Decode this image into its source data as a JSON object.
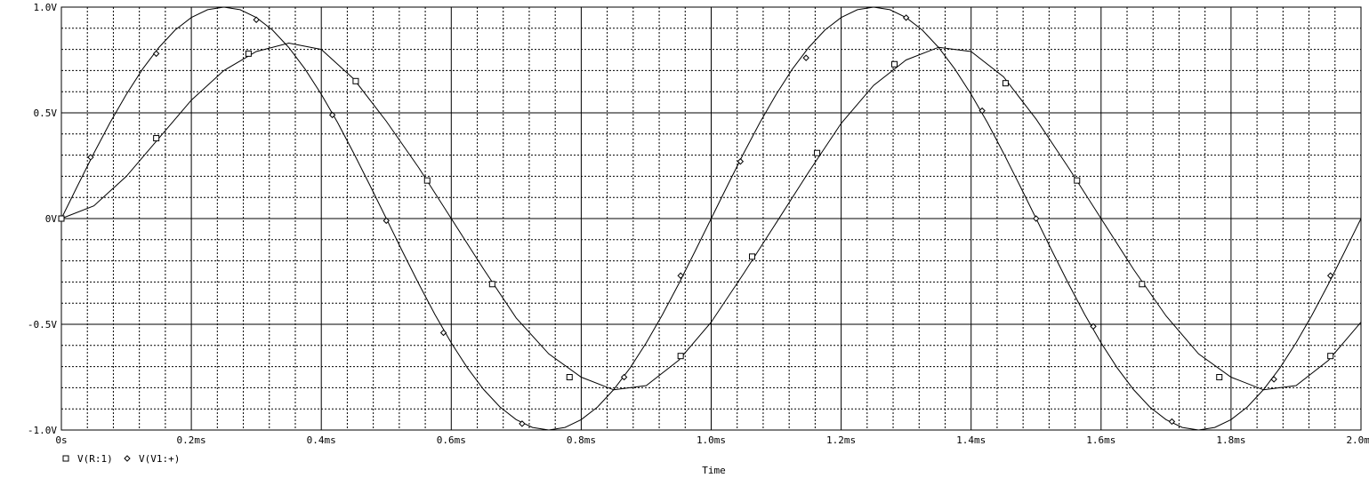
{
  "chart_data": {
    "type": "line",
    "xlabel": "Time",
    "ylabel": "",
    "xlim": [
      0,
      2.0
    ],
    "ylim": [
      -1.0,
      1.0
    ],
    "x_unit": "ms",
    "grid": true,
    "legend_placement": "bottom-left",
    "x_ticks": [
      {
        "value": 0.0,
        "label": "0s"
      },
      {
        "value": 0.2,
        "label": "0.2ms"
      },
      {
        "value": 0.4,
        "label": "0.4ms"
      },
      {
        "value": 0.6,
        "label": "0.6ms"
      },
      {
        "value": 0.8,
        "label": "0.8ms"
      },
      {
        "value": 1.0,
        "label": "1.0ms"
      },
      {
        "value": 1.2,
        "label": "1.2ms"
      },
      {
        "value": 1.4,
        "label": "1.4ms"
      },
      {
        "value": 1.6,
        "label": "1.6ms"
      },
      {
        "value": 1.8,
        "label": "1.8ms"
      },
      {
        "value": 2.0,
        "label": "2.0ms"
      }
    ],
    "y_ticks": [
      {
        "value": 1.0,
        "label": "1.0V"
      },
      {
        "value": 0.5,
        "label": "0.5V"
      },
      {
        "value": 0.0,
        "label": "0V"
      },
      {
        "value": -0.5,
        "label": "-0.5V"
      },
      {
        "value": -1.0,
        "label": "-1.0V"
      }
    ],
    "series": [
      {
        "name": "V(R:1)",
        "marker": "square",
        "color": "#000000",
        "x": [
          0.0,
          0.05,
          0.1,
          0.15,
          0.2,
          0.25,
          0.3,
          0.35,
          0.4,
          0.45,
          0.5,
          0.55,
          0.6,
          0.65,
          0.7,
          0.75,
          0.8,
          0.85,
          0.9,
          0.95,
          1.0,
          1.05,
          1.1,
          1.15,
          1.2,
          1.25,
          1.3,
          1.35,
          1.4,
          1.45,
          1.5,
          1.55,
          1.6,
          1.65,
          1.7,
          1.75,
          1.8,
          1.85,
          1.9,
          1.95,
          2.0
        ],
        "y": [
          0.0,
          0.06,
          0.2,
          0.38,
          0.56,
          0.7,
          0.79,
          0.83,
          0.8,
          0.66,
          0.46,
          0.24,
          0.0,
          -0.24,
          -0.47,
          -0.64,
          -0.75,
          -0.81,
          -0.79,
          -0.67,
          -0.49,
          -0.26,
          -0.02,
          0.22,
          0.45,
          0.63,
          0.75,
          0.81,
          0.79,
          0.67,
          0.47,
          0.24,
          0.0,
          -0.24,
          -0.46,
          -0.64,
          -0.75,
          -0.81,
          -0.79,
          -0.67,
          -0.49
        ],
        "marker_x": [
          0.0,
          0.146,
          0.288,
          0.453,
          0.563,
          0.663,
          0.782,
          0.953,
          1.063,
          1.163,
          1.282,
          1.453,
          1.563,
          1.663,
          1.782,
          1.953
        ],
        "marker_y": [
          0.0,
          0.38,
          0.78,
          0.65,
          0.18,
          -0.31,
          -0.75,
          -0.65,
          -0.18,
          0.31,
          0.73,
          0.64,
          0.18,
          -0.31,
          -0.75,
          -0.65
        ]
      },
      {
        "name": "V(V1:+)",
        "marker": "diamond",
        "color": "#000000",
        "x": [
          0.0,
          0.025,
          0.05,
          0.075,
          0.1,
          0.125,
          0.15,
          0.175,
          0.2,
          0.225,
          0.25,
          0.275,
          0.3,
          0.325,
          0.35,
          0.375,
          0.4,
          0.425,
          0.45,
          0.475,
          0.5,
          0.525,
          0.55,
          0.575,
          0.6,
          0.625,
          0.65,
          0.675,
          0.7,
          0.725,
          0.75,
          0.775,
          0.8,
          0.825,
          0.85,
          0.875,
          0.9,
          0.925,
          0.95,
          0.975,
          1.0,
          1.025,
          1.05,
          1.075,
          1.1,
          1.125,
          1.15,
          1.175,
          1.2,
          1.225,
          1.25,
          1.275,
          1.3,
          1.325,
          1.35,
          1.375,
          1.4,
          1.425,
          1.45,
          1.475,
          1.5,
          1.525,
          1.55,
          1.575,
          1.6,
          1.625,
          1.65,
          1.675,
          1.7,
          1.725,
          1.75,
          1.775,
          1.8,
          1.825,
          1.85,
          1.875,
          1.9,
          1.925,
          1.95,
          1.975,
          2.0
        ],
        "y": [
          0.0,
          0.156,
          0.309,
          0.454,
          0.588,
          0.707,
          0.809,
          0.891,
          0.951,
          0.988,
          1.0,
          0.988,
          0.951,
          0.891,
          0.809,
          0.707,
          0.588,
          0.454,
          0.309,
          0.156,
          0.0,
          -0.156,
          -0.309,
          -0.454,
          -0.588,
          -0.707,
          -0.809,
          -0.891,
          -0.951,
          -0.988,
          -1.0,
          -0.988,
          -0.951,
          -0.891,
          -0.809,
          -0.707,
          -0.588,
          -0.454,
          -0.309,
          -0.156,
          0.0,
          0.156,
          0.309,
          0.454,
          0.588,
          0.707,
          0.809,
          0.891,
          0.951,
          0.988,
          1.0,
          0.988,
          0.951,
          0.891,
          0.809,
          0.707,
          0.588,
          0.454,
          0.309,
          0.156,
          0.0,
          -0.156,
          -0.309,
          -0.454,
          -0.588,
          -0.707,
          -0.809,
          -0.891,
          -0.951,
          -0.988,
          -1.0,
          -0.988,
          -0.951,
          -0.891,
          -0.809,
          -0.707,
          -0.588,
          -0.454,
          -0.309,
          -0.156,
          0.0
        ],
        "marker_x": [
          0.045,
          0.146,
          0.3,
          0.417,
          0.5,
          0.588,
          0.709,
          0.866,
          0.953,
          1.045,
          1.146,
          1.3,
          1.417,
          1.5,
          1.588,
          1.709,
          1.866,
          1.953
        ],
        "marker_y": [
          0.29,
          0.78,
          0.94,
          0.49,
          -0.01,
          -0.54,
          -0.97,
          -0.75,
          -0.27,
          0.27,
          0.76,
          0.95,
          0.51,
          0.0,
          -0.51,
          -0.96,
          -0.76,
          -0.27
        ]
      }
    ]
  }
}
